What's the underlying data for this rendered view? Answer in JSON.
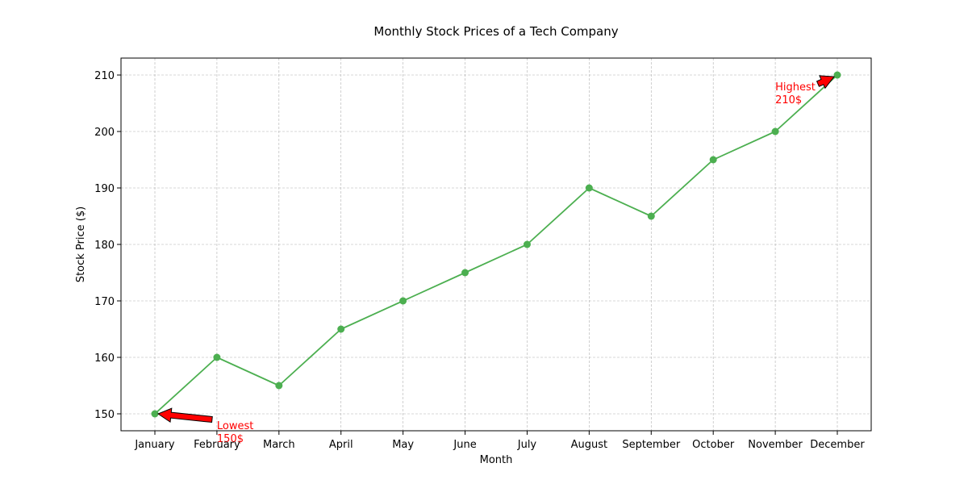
{
  "chart_data": {
    "type": "line",
    "title": "Monthly Stock Prices of a Tech Company",
    "xlabel": "Month",
    "ylabel": "Stock Price ($)",
    "categories": [
      "January",
      "February",
      "March",
      "April",
      "May",
      "June",
      "July",
      "August",
      "September",
      "October",
      "November",
      "December"
    ],
    "series": [
      {
        "values": [
          150,
          160,
          155,
          165,
          170,
          175,
          180,
          190,
          185,
          195,
          200,
          210
        ],
        "color": "#4caf50",
        "marker": "circle"
      }
    ],
    "ylim": [
      147,
      213
    ],
    "yticks": [
      150,
      160,
      170,
      180,
      190,
      200,
      210
    ],
    "grid": true,
    "grid_style": "dashed",
    "annotations": [
      {
        "line1": "Lowest",
        "line2": "150$",
        "target_category": "January",
        "target_value": 150,
        "color": "#ff0000"
      },
      {
        "line1": "Highest",
        "line2": "210$",
        "target_category": "December",
        "target_value": 210,
        "color": "#ff0000"
      }
    ]
  }
}
